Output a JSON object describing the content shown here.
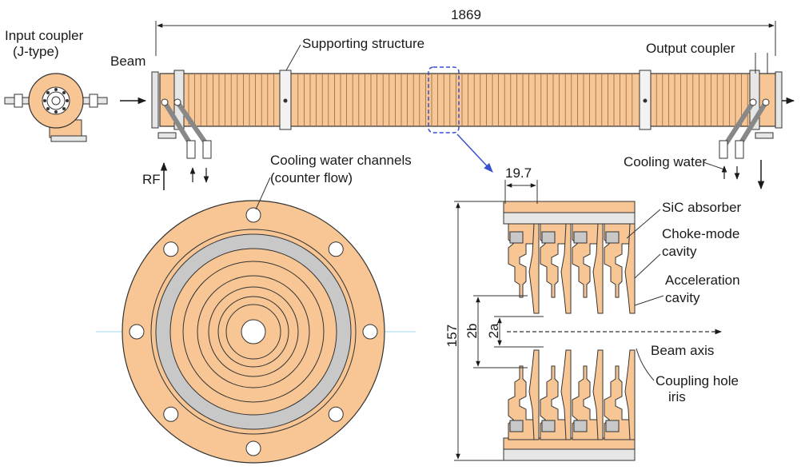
{
  "labels": {
    "dim_length": "1869",
    "input_coupler_line1": "Input coupler",
    "input_coupler_line2": "(J-type)",
    "beam": "Beam",
    "supporting_structure": "Supporting structure",
    "output_coupler": "Output coupler",
    "rf": "RF",
    "cooling_channels_line1": "Cooling water channels",
    "cooling_channels_line2": "(counter flow)",
    "cooling_water": "Cooling water",
    "dim_period": "19.7",
    "sic_absorber": "SiC absorber",
    "choke_mode_line1": "Choke-mode",
    "choke_mode_line2": "cavity",
    "acceleration_line1": "Acceleration",
    "acceleration_line2": "cavity",
    "dim_height": "157",
    "dim_2b": "2b",
    "dim_2a": "2a",
    "beam_axis": "Beam axis",
    "coupling_line1": "Coupling hole",
    "coupling_line2": "iris"
  },
  "colors": {
    "copper": "#f7c694",
    "outline": "#333333",
    "absorber": "#c8c8c8",
    "flange": "#e6e6e6",
    "callout": "#3a4fd0"
  },
  "structure": {
    "cell_count": 4
  }
}
